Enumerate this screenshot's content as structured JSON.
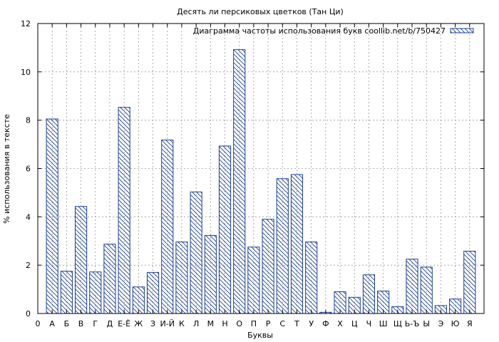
{
  "chart_data": {
    "type": "bar",
    "title": "Десять ли персиковых цветков (Тан Ци)",
    "xlabel": "Буквы",
    "ylabel": "% использования в тексте",
    "legend": {
      "label": "Диаграмма частоты использования букв coollib.net/b/750427",
      "position": "top-right"
    },
    "categories": [
      "0",
      "А",
      "Б",
      "В",
      "Г",
      "Д",
      "Е-Ё",
      "Ж",
      "З",
      "И-Й",
      "К",
      "Л",
      "М",
      "Н",
      "О",
      "П",
      "Р",
      "С",
      "Т",
      "У",
      "Ф",
      "Х",
      "Ц",
      "Ч",
      "Ш",
      "Щ",
      "Ь-Ъ",
      "Ы",
      "Э",
      "Ю",
      "Я"
    ],
    "values": [
      null,
      8.05,
      1.75,
      4.43,
      1.72,
      2.87,
      8.53,
      1.1,
      1.7,
      7.18,
      2.96,
      5.03,
      3.23,
      6.93,
      10.92,
      2.75,
      3.9,
      5.58,
      5.75,
      2.96,
      0.05,
      0.9,
      0.67,
      1.6,
      0.93,
      0.28,
      2.25,
      1.92,
      0.33,
      0.6,
      2.58
    ],
    "ylim": [
      0,
      12
    ],
    "yticks": [
      0,
      2,
      4,
      6,
      8,
      10,
      12
    ],
    "grid": true,
    "colors": {
      "bar_stroke": "#1a3f99",
      "hatch": "#1a3f99",
      "grid": "#9a9a9a"
    }
  }
}
